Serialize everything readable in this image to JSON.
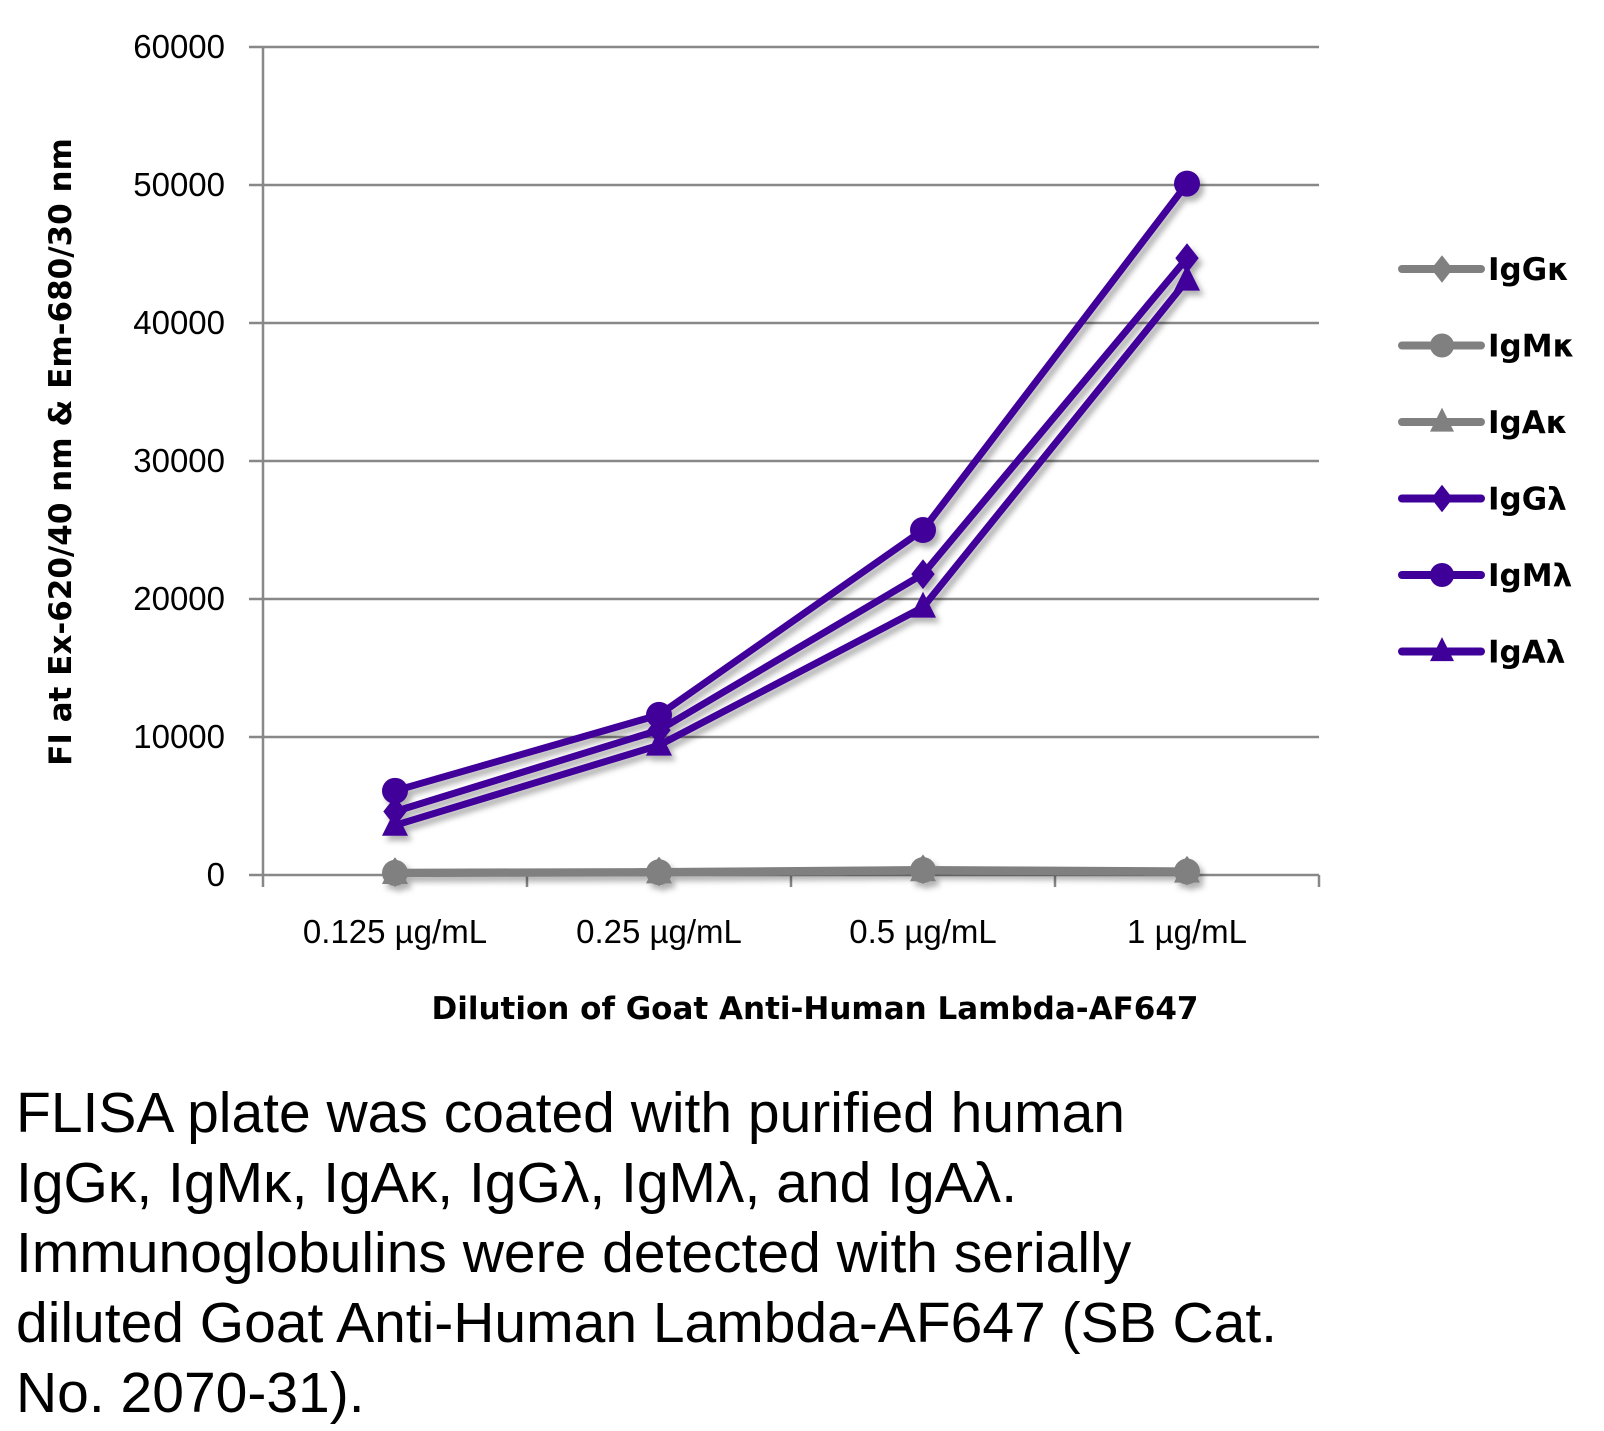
{
  "chart_data": {
    "type": "line",
    "title": "",
    "xlabel": "Dilution of Goat Anti-Human Lambda-AF647",
    "ylabel": "FI at Ex-620/40 nm & Em-680/30 nm",
    "categories": [
      "0.125 µg/mL",
      "0.25 µg/mL",
      "0.5 µg/mL",
      "1 µg/mL"
    ],
    "ylim": [
      0,
      60000
    ],
    "yticks": [
      "0",
      "10000",
      "20000",
      "30000",
      "40000",
      "50000",
      "60000"
    ],
    "grid": true,
    "legend_position": "right",
    "series": [
      {
        "name": "IgGκ",
        "marker": "diamond",
        "color": "#808080",
        "values": [
          200,
          250,
          400,
          300
        ]
      },
      {
        "name": "IgMκ",
        "marker": "circle",
        "color": "#808080",
        "values": [
          150,
          200,
          350,
          250
        ]
      },
      {
        "name": "IgAκ",
        "marker": "triangle",
        "color": "#808080",
        "values": [
          100,
          150,
          300,
          200
        ]
      },
      {
        "name": "IgGλ",
        "marker": "diamond",
        "color": "#3f0099",
        "values": [
          4600,
          10500,
          21800,
          44700
        ]
      },
      {
        "name": "IgMλ",
        "marker": "circle",
        "color": "#3f0099",
        "values": [
          6100,
          11600,
          25000,
          50100
        ]
      },
      {
        "name": "IgAλ",
        "marker": "triangle",
        "color": "#3f0099",
        "values": [
          3600,
          9400,
          19400,
          43100
        ]
      }
    ]
  },
  "caption": [
    "FLISA plate was coated with purified human",
    "IgGκ, IgMκ, IgAκ, IgGλ, IgMλ, and IgAλ.",
    "Immunoglobulins were detected with serially",
    "diluted Goat Anti-Human Lambda-AF647 (SB Cat.",
    "No. 2070-31)."
  ]
}
